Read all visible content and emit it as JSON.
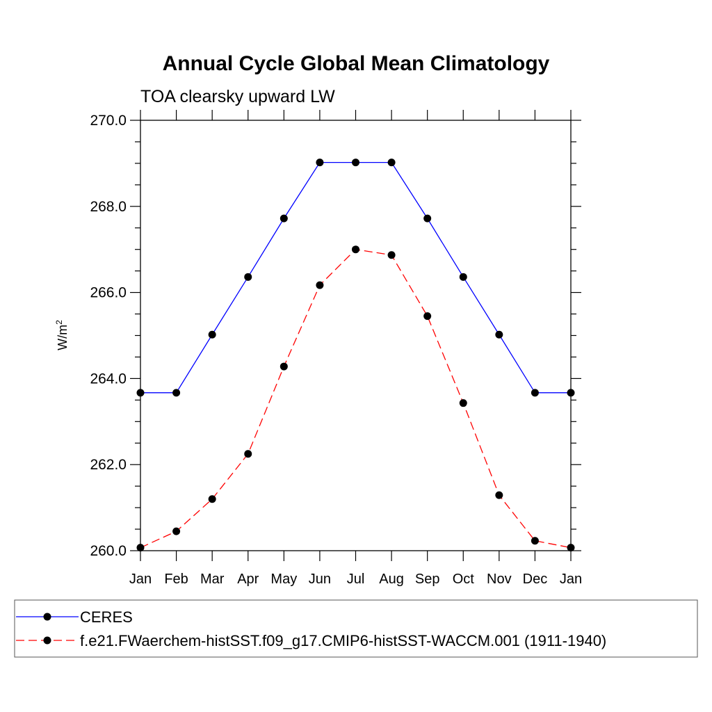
{
  "chart_data": {
    "type": "line",
    "title": "Annual Cycle Global Mean Climatology",
    "subtitle": "TOA clearsky upward LW",
    "ylabel": "W/m",
    "ylabel_superscript": "2",
    "xlabel": "",
    "categories": [
      "Jan",
      "Feb",
      "Mar",
      "Apr",
      "May",
      "Jun",
      "Jul",
      "Aug",
      "Sep",
      "Oct",
      "Nov",
      "Dec",
      "Jan"
    ],
    "ylim": [
      260.0,
      270.0
    ],
    "yticks": [
      "260.0",
      "262.0",
      "264.0",
      "266.0",
      "268.0",
      "270.0"
    ],
    "grid": false,
    "legend_position": "bottom",
    "series": [
      {
        "name": "CERES",
        "color": "#0000ff",
        "dash": "solid",
        "marker": "circle",
        "values": [
          263.67,
          263.67,
          265.02,
          266.36,
          267.72,
          269.02,
          269.02,
          269.02,
          267.72,
          266.36,
          265.02,
          263.67,
          263.67
        ]
      },
      {
        "name": "f.e21.FWaerchem-histSST.f09_g17.CMIP6-histSST-WACCM.001 (1911-1940)",
        "color": "#ff0000",
        "dash": "dashed",
        "marker": "circle",
        "values": [
          260.07,
          260.45,
          261.2,
          262.25,
          264.28,
          266.17,
          267.0,
          266.87,
          265.45,
          263.43,
          261.29,
          260.23,
          260.07
        ]
      }
    ]
  }
}
